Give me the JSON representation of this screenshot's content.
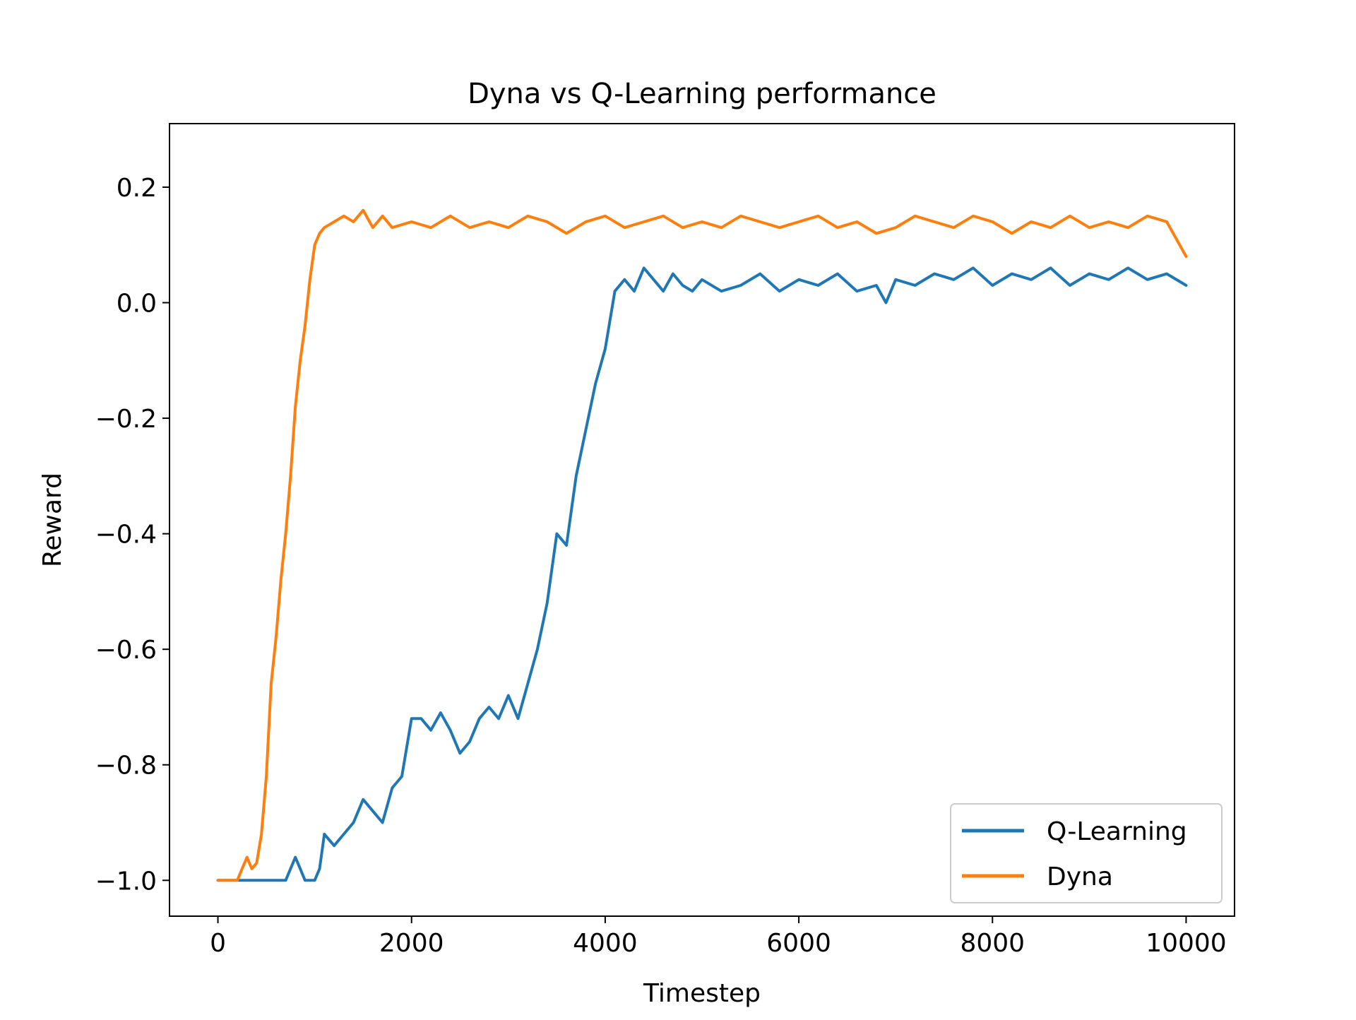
{
  "chart_data": {
    "type": "line",
    "title": "Dyna vs Q-Learning performance",
    "xlabel": "Timestep",
    "ylabel": "Reward",
    "xlim": [
      -500,
      10500
    ],
    "ylim": [
      -1.062,
      0.31
    ],
    "xticks": [
      0,
      2000,
      4000,
      6000,
      8000,
      10000
    ],
    "xtick_labels": [
      "0",
      "2000",
      "4000",
      "6000",
      "8000",
      "10000"
    ],
    "yticks": [
      -1.0,
      -0.8,
      -0.6,
      -0.4,
      -0.2,
      0.0,
      0.2
    ],
    "ytick_labels": [
      "−1.0",
      "−0.8",
      "−0.6",
      "−0.4",
      "−0.2",
      "0.0",
      "0.2"
    ],
    "grid": false,
    "legend_position": "lower-right",
    "series": [
      {
        "name": "Q-Learning",
        "color": "#1f77b4",
        "x": [
          0,
          200,
          400,
          600,
          700,
          750,
          800,
          850,
          900,
          1000,
          1050,
          1100,
          1200,
          1300,
          1400,
          1500,
          1600,
          1700,
          1800,
          1900,
          2000,
          2100,
          2200,
          2300,
          2400,
          2500,
          2600,
          2700,
          2800,
          2900,
          3000,
          3100,
          3200,
          3300,
          3400,
          3500,
          3600,
          3700,
          3800,
          3900,
          4000,
          4100,
          4200,
          4300,
          4400,
          4500,
          4600,
          4700,
          4800,
          4900,
          5000,
          5200,
          5400,
          5600,
          5800,
          6000,
          6200,
          6400,
          6600,
          6800,
          6900,
          7000,
          7200,
          7400,
          7600,
          7800,
          8000,
          8200,
          8400,
          8600,
          8800,
          9000,
          9200,
          9400,
          9600,
          9800,
          10000
        ],
        "values": [
          -1.0,
          -1.0,
          -1.0,
          -1.0,
          -1.0,
          -0.98,
          -0.96,
          -0.98,
          -1.0,
          -1.0,
          -0.98,
          -0.92,
          -0.94,
          -0.92,
          -0.9,
          -0.86,
          -0.88,
          -0.9,
          -0.84,
          -0.82,
          -0.72,
          -0.72,
          -0.74,
          -0.71,
          -0.74,
          -0.78,
          -0.76,
          -0.72,
          -0.7,
          -0.72,
          -0.68,
          -0.72,
          -0.66,
          -0.6,
          -0.52,
          -0.4,
          -0.42,
          -0.3,
          -0.22,
          -0.14,
          -0.08,
          0.02,
          0.04,
          0.02,
          0.06,
          0.04,
          0.02,
          0.05,
          0.03,
          0.02,
          0.04,
          0.02,
          0.03,
          0.05,
          0.02,
          0.04,
          0.03,
          0.05,
          0.02,
          0.03,
          0.0,
          0.04,
          0.03,
          0.05,
          0.04,
          0.06,
          0.03,
          0.05,
          0.04,
          0.06,
          0.03,
          0.05,
          0.04,
          0.06,
          0.04,
          0.05,
          0.03
        ]
      },
      {
        "name": "Dyna",
        "color": "#ff7f0e",
        "x": [
          0,
          200,
          250,
          300,
          350,
          400,
          450,
          500,
          550,
          600,
          650,
          700,
          750,
          800,
          850,
          900,
          950,
          1000,
          1050,
          1100,
          1200,
          1300,
          1400,
          1500,
          1600,
          1700,
          1800,
          2000,
          2200,
          2400,
          2600,
          2800,
          3000,
          3200,
          3400,
          3600,
          3800,
          4000,
          4200,
          4400,
          4600,
          4800,
          5000,
          5200,
          5400,
          5600,
          5800,
          6000,
          6200,
          6400,
          6600,
          6800,
          7000,
          7200,
          7400,
          7600,
          7800,
          8000,
          8200,
          8400,
          8600,
          8800,
          9000,
          9200,
          9400,
          9600,
          9800,
          10000
        ],
        "values": [
          -1.0,
          -1.0,
          -0.98,
          -0.96,
          -0.98,
          -0.97,
          -0.92,
          -0.82,
          -0.66,
          -0.58,
          -0.48,
          -0.4,
          -0.3,
          -0.18,
          -0.1,
          -0.04,
          0.04,
          0.1,
          0.12,
          0.13,
          0.14,
          0.15,
          0.14,
          0.16,
          0.13,
          0.15,
          0.13,
          0.14,
          0.13,
          0.15,
          0.13,
          0.14,
          0.13,
          0.15,
          0.14,
          0.12,
          0.14,
          0.15,
          0.13,
          0.14,
          0.15,
          0.13,
          0.14,
          0.13,
          0.15,
          0.14,
          0.13,
          0.14,
          0.15,
          0.13,
          0.14,
          0.12,
          0.13,
          0.15,
          0.14,
          0.13,
          0.15,
          0.14,
          0.12,
          0.14,
          0.13,
          0.15,
          0.13,
          0.14,
          0.13,
          0.15,
          0.14,
          0.08
        ]
      }
    ]
  }
}
